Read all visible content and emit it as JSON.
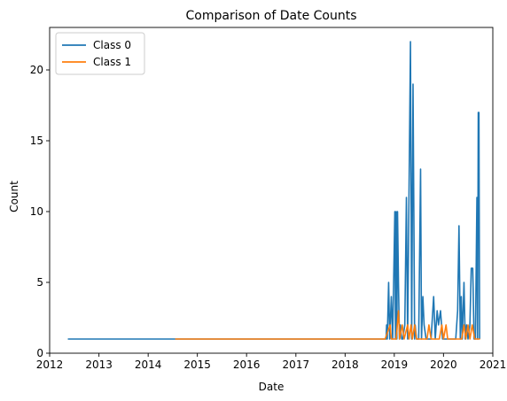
{
  "chart_data": {
    "type": "line",
    "title": "Comparison of Date Counts",
    "xlabel": "Date",
    "ylabel": "Count",
    "xlim": [
      "2012-01-01",
      "2021-01-01"
    ],
    "ylim": [
      0,
      23
    ],
    "x_ticks": [
      "2012",
      "2013",
      "2014",
      "2015",
      "2016",
      "2017",
      "2018",
      "2019",
      "2020",
      "2021"
    ],
    "y_ticks": [
      0,
      5,
      10,
      15,
      20
    ],
    "grid": false,
    "legend_position": "top-left",
    "series": [
      {
        "name": "Class 0",
        "color": "#1f77b4",
        "points": [
          [
            "2012-05-15",
            1
          ],
          [
            "2018-11-01",
            1
          ],
          [
            "2018-11-05",
            2
          ],
          [
            "2018-11-10",
            1
          ],
          [
            "2018-11-20",
            5
          ],
          [
            "2018-11-28",
            1
          ],
          [
            "2018-12-10",
            4
          ],
          [
            "2018-12-20",
            1
          ],
          [
            "2019-01-05",
            10
          ],
          [
            "2019-01-10",
            1
          ],
          [
            "2019-01-15",
            10
          ],
          [
            "2019-01-20",
            1
          ],
          [
            "2019-01-25",
            10
          ],
          [
            "2019-02-01",
            5
          ],
          [
            "2019-02-08",
            1
          ],
          [
            "2019-02-15",
            2
          ],
          [
            "2019-02-25",
            1
          ],
          [
            "2019-03-05",
            1
          ],
          [
            "2019-03-20",
            2
          ],
          [
            "2019-04-01",
            11
          ],
          [
            "2019-04-10",
            1
          ],
          [
            "2019-04-20",
            11
          ],
          [
            "2019-05-01",
            22
          ],
          [
            "2019-05-10",
            1
          ],
          [
            "2019-05-20",
            19
          ],
          [
            "2019-06-01",
            1
          ],
          [
            "2019-06-05",
            2
          ],
          [
            "2019-06-15",
            1
          ],
          [
            "2019-07-01",
            1
          ],
          [
            "2019-07-15",
            13
          ],
          [
            "2019-07-22",
            1
          ],
          [
            "2019-08-01",
            4
          ],
          [
            "2019-08-10",
            2
          ],
          [
            "2019-08-25",
            1
          ],
          [
            "2019-09-15",
            1
          ],
          [
            "2019-10-01",
            1
          ],
          [
            "2019-10-20",
            4
          ],
          [
            "2019-11-01",
            1
          ],
          [
            "2019-11-15",
            3
          ],
          [
            "2019-11-25",
            2
          ],
          [
            "2019-12-10",
            3
          ],
          [
            "2019-12-25",
            1
          ],
          [
            "2020-01-05",
            1
          ],
          [
            "2020-02-01",
            1
          ],
          [
            "2020-03-01",
            1
          ],
          [
            "2020-04-01",
            1
          ],
          [
            "2020-04-15",
            3
          ],
          [
            "2020-04-25",
            9
          ],
          [
            "2020-05-05",
            1
          ],
          [
            "2020-05-12",
            4
          ],
          [
            "2020-05-20",
            1
          ],
          [
            "2020-06-01",
            5
          ],
          [
            "2020-06-10",
            1
          ],
          [
            "2020-06-20",
            2
          ],
          [
            "2020-07-01",
            1
          ],
          [
            "2020-07-15",
            2
          ],
          [
            "2020-07-25",
            6
          ],
          [
            "2020-08-05",
            6
          ],
          [
            "2020-08-15",
            1
          ],
          [
            "2020-08-25",
            1
          ],
          [
            "2020-09-05",
            11
          ],
          [
            "2020-09-10",
            1
          ],
          [
            "2020-09-15",
            17
          ],
          [
            "2020-09-20",
            17
          ],
          [
            "2020-09-25",
            1
          ]
        ]
      },
      {
        "name": "Class 1",
        "color": "#ff7f0e",
        "points": [
          [
            "2014-07-20",
            1
          ],
          [
            "2018-10-25",
            1
          ],
          [
            "2018-12-01",
            2
          ],
          [
            "2018-12-10",
            1
          ],
          [
            "2019-01-15",
            1
          ],
          [
            "2019-02-01",
            3
          ],
          [
            "2019-02-10",
            1
          ],
          [
            "2019-03-01",
            2
          ],
          [
            "2019-03-15",
            1
          ],
          [
            "2019-04-10",
            2
          ],
          [
            "2019-04-20",
            1
          ],
          [
            "2019-05-05",
            2
          ],
          [
            "2019-05-15",
            1
          ],
          [
            "2019-06-01",
            2
          ],
          [
            "2019-06-15",
            1
          ],
          [
            "2019-07-15",
            1
          ],
          [
            "2019-09-01",
            1
          ],
          [
            "2019-09-15",
            2
          ],
          [
            "2019-10-01",
            1
          ],
          [
            "2019-12-01",
            1
          ],
          [
            "2019-12-20",
            2
          ],
          [
            "2020-01-01",
            1
          ],
          [
            "2020-01-20",
            2
          ],
          [
            "2020-02-01",
            1
          ],
          [
            "2020-04-01",
            1
          ],
          [
            "2020-05-15",
            1
          ],
          [
            "2020-06-01",
            2
          ],
          [
            "2020-06-15",
            1
          ],
          [
            "2020-07-01",
            2
          ],
          [
            "2020-07-15",
            1
          ],
          [
            "2020-08-01",
            2
          ],
          [
            "2020-08-20",
            1
          ],
          [
            "2020-09-28",
            1
          ]
        ]
      }
    ]
  }
}
